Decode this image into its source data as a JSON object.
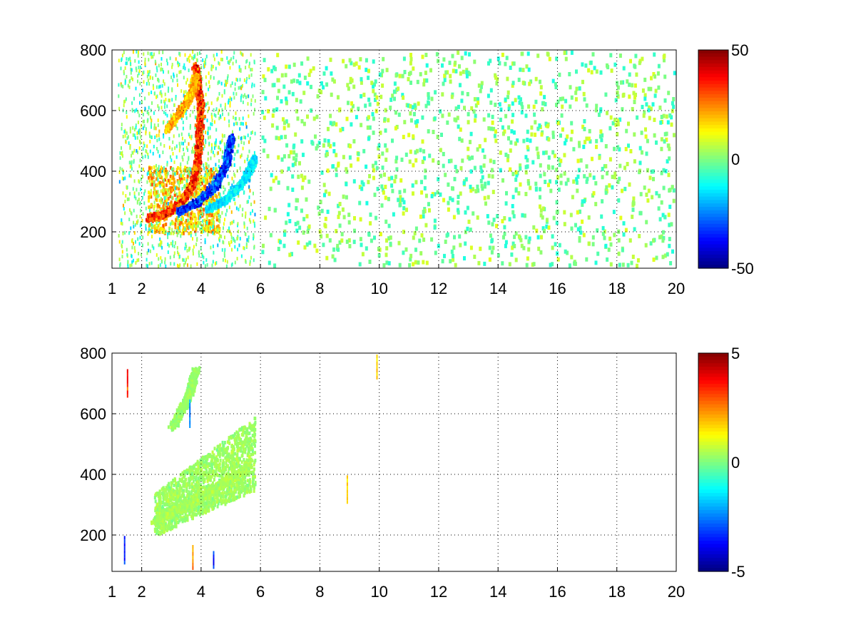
{
  "chart_data": [
    {
      "type": "heatmap",
      "title": "",
      "xlabel": "",
      "ylabel": "",
      "xlim": [
        1,
        20
      ],
      "ylim": [
        80,
        800
      ],
      "x_ticks": [
        1,
        2,
        4,
        6,
        8,
        10,
        12,
        14,
        16,
        18,
        20
      ],
      "x_tick_labels": [
        "1",
        "2",
        "4",
        "6",
        "8",
        "10",
        "12",
        "14",
        "16",
        "18",
        "20"
      ],
      "y_ticks": [
        200,
        400,
        600,
        800
      ],
      "y_tick_labels": [
        "200",
        "400",
        "600",
        "800"
      ],
      "grid": true,
      "grid_style": "dotted",
      "colormap": "jet",
      "clim": [
        -50,
        50
      ],
      "colorbar_ticks": [
        50,
        0,
        -50
      ],
      "colorbar_tick_labels": [
        "50",
        "0",
        "-50"
      ],
      "features": [
        {
          "name": "red ridge",
          "points": [
            [
              2.2,
              250
            ],
            [
              2.8,
              265
            ],
            [
              3.3,
              300
            ],
            [
              3.7,
              360
            ],
            [
              3.9,
              470
            ],
            [
              3.95,
              620
            ],
            [
              3.8,
              750
            ]
          ],
          "value": 40
        },
        {
          "name": "blue ridge",
          "points": [
            [
              3.2,
              270
            ],
            [
              3.8,
              300
            ],
            [
              4.4,
              350
            ],
            [
              4.8,
              420
            ],
            [
              5.0,
              520
            ]
          ],
          "value": -40
        },
        {
          "name": "cyan branch",
          "points": [
            [
              4.2,
              280
            ],
            [
              4.8,
              310
            ],
            [
              5.4,
              370
            ],
            [
              5.8,
              450
            ]
          ],
          "value": -18
        },
        {
          "name": "upper warm arm",
          "points": [
            [
              2.8,
              540
            ],
            [
              3.2,
              590
            ],
            [
              3.6,
              650
            ],
            [
              3.8,
              720
            ]
          ],
          "value": 25
        }
      ],
      "sparse_region": {
        "x_range": [
          6,
          20
        ],
        "values": [
          -10,
          10
        ]
      }
    },
    {
      "type": "heatmap",
      "title": "",
      "xlabel": "",
      "ylabel": "",
      "xlim": [
        1,
        20
      ],
      "ylim": [
        80,
        800
      ],
      "x_ticks": [
        1,
        2,
        4,
        6,
        8,
        10,
        12,
        14,
        16,
        18,
        20
      ],
      "x_tick_labels": [
        "1",
        "2",
        "4",
        "6",
        "8",
        "10",
        "12",
        "14",
        "16",
        "18",
        "20"
      ],
      "y_ticks": [
        200,
        400,
        600,
        800
      ],
      "y_tick_labels": [
        "200",
        "400",
        "600",
        "800"
      ],
      "grid": true,
      "grid_style": "dotted",
      "colormap": "jet",
      "clim": [
        -5,
        5
      ],
      "colorbar_ticks": [
        5,
        0,
        -5
      ],
      "colorbar_tick_labels": [
        "5",
        "0",
        "-5"
      ],
      "features": [
        {
          "name": "green band",
          "points": [
            [
              2.4,
              250
            ],
            [
              3.2,
              290
            ],
            [
              4.0,
              330
            ],
            [
              4.8,
              380
            ],
            [
              5.6,
              430
            ]
          ],
          "value": 0.5
        },
        {
          "name": "upper green arm",
          "points": [
            [
              3.0,
              560
            ],
            [
              3.5,
              650
            ],
            [
              3.8,
              750
            ]
          ],
          "value": 0.3
        }
      ],
      "outliers": [
        [
          1.4,
          150,
          -4
        ],
        [
          1.5,
          700,
          4
        ],
        [
          3.7,
          120,
          3
        ],
        [
          3.6,
          600,
          -3
        ],
        [
          4.4,
          100,
          -4
        ],
        [
          8.9,
          350,
          2
        ],
        [
          9.9,
          760,
          2
        ]
      ]
    }
  ]
}
